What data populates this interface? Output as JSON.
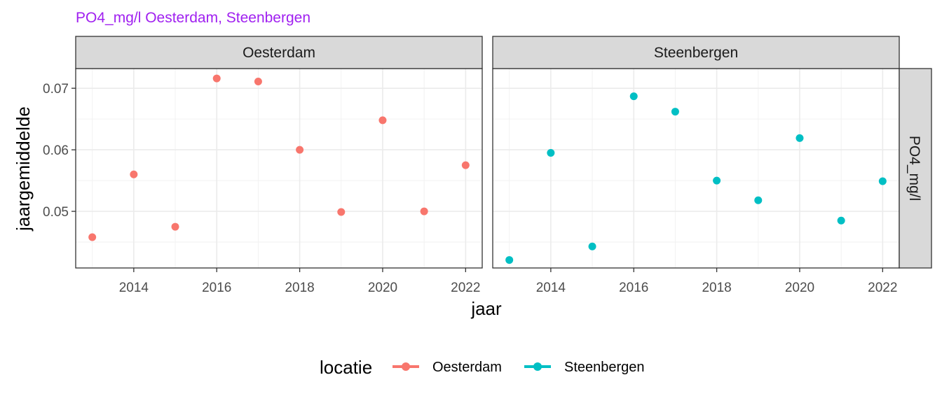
{
  "chart_data": {
    "type": "scatter",
    "title": "PO4_mg/l Oesterdam, Steenbergen",
    "xlabel": "jaar",
    "ylabel": "jaargemiddelde",
    "facet_row_label": "PO4_mg/l",
    "xlim": [
      2012.6,
      2022.4
    ],
    "ylim": [
      0.0408,
      0.0732
    ],
    "x_ticks": [
      2014,
      2016,
      2018,
      2020,
      2022
    ],
    "y_ticks": [
      0.05,
      0.06,
      0.07
    ],
    "y_tick_labels": [
      "0.05",
      "0.06",
      "0.07"
    ],
    "grid": true,
    "legend": {
      "title": "locatie",
      "position": "bottom"
    },
    "series": [
      {
        "name": "Oesterdam",
        "color": "#F8766D",
        "x": [
          2013,
          2014,
          2015,
          2016,
          2017,
          2018,
          2019,
          2020,
          2021,
          2022
        ],
        "y": [
          0.0458,
          0.056,
          0.0475,
          0.0716,
          0.0711,
          0.06,
          0.0499,
          0.0648,
          0.05,
          0.0575
        ]
      },
      {
        "name": "Steenbergen",
        "color": "#00BFC4",
        "x": [
          2013,
          2014,
          2015,
          2016,
          2017,
          2018,
          2019,
          2020,
          2021,
          2022
        ],
        "y": [
          0.0421,
          0.0595,
          0.0443,
          0.0687,
          0.0662,
          0.055,
          0.0518,
          0.0619,
          0.0485,
          0.0549
        ]
      }
    ]
  }
}
